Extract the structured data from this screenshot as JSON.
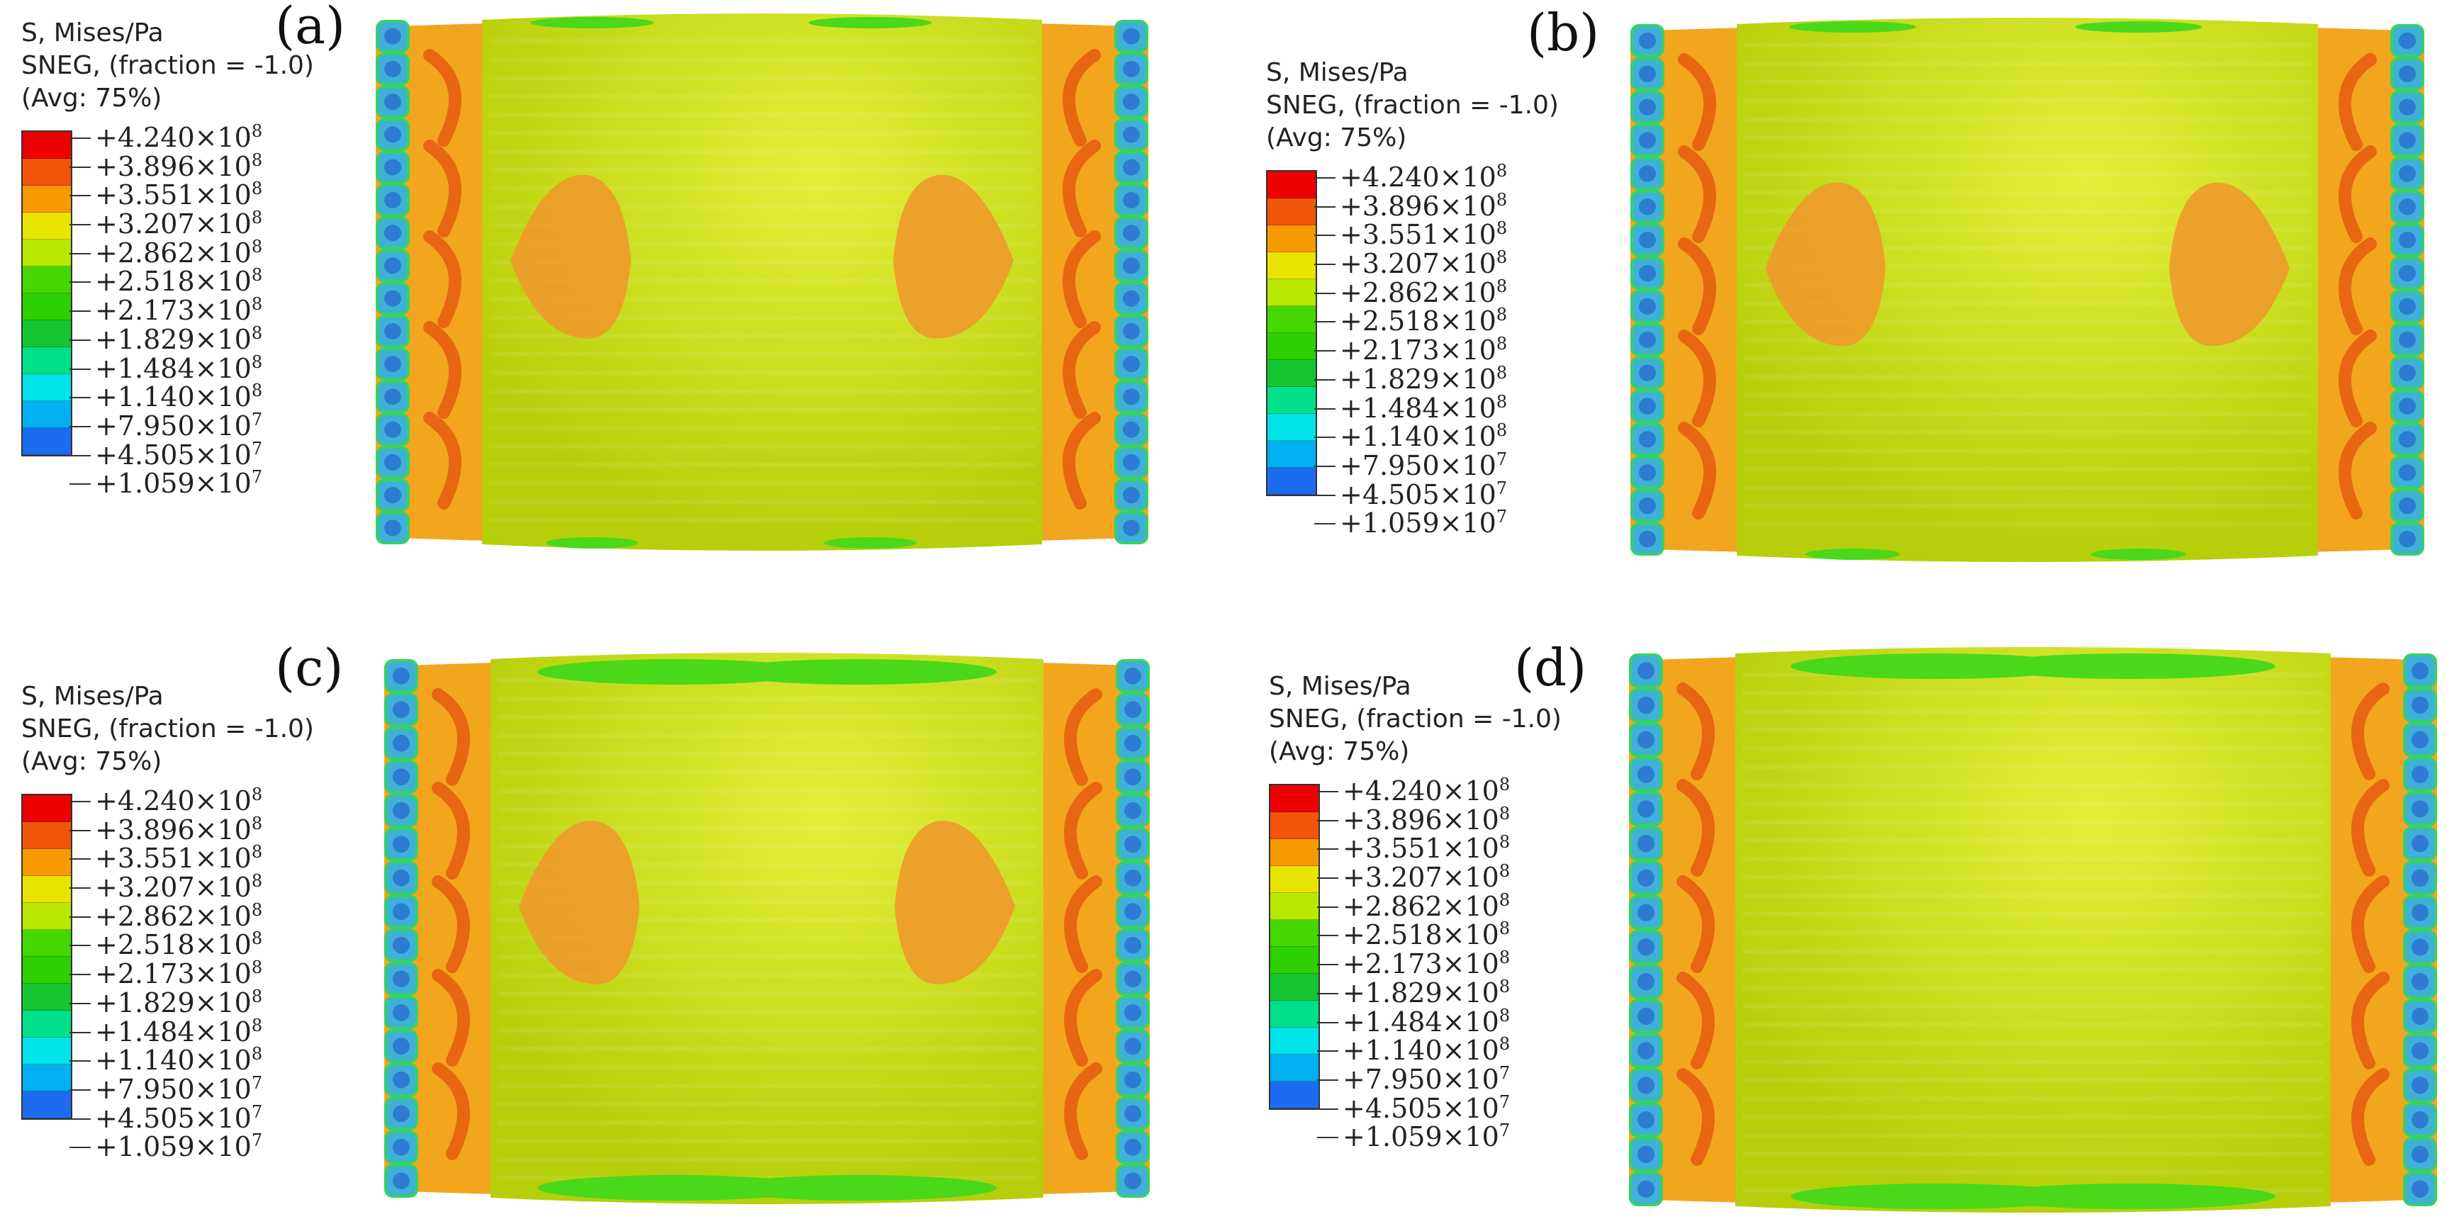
{
  "legend": {
    "title": "S, Mises/Pa",
    "subtitle": "SNEG, (fraction = -1.0)",
    "avg": "(Avg: 75%)",
    "levels": [
      {
        "mantissa": "+4.240",
        "exp": "8"
      },
      {
        "mantissa": "+3.896",
        "exp": "8"
      },
      {
        "mantissa": "+3.551",
        "exp": "8"
      },
      {
        "mantissa": "+3.207",
        "exp": "8"
      },
      {
        "mantissa": "+2.862",
        "exp": "8"
      },
      {
        "mantissa": "+2.518",
        "exp": "8"
      },
      {
        "mantissa": "+2.173",
        "exp": "8"
      },
      {
        "mantissa": "+1.829",
        "exp": "8"
      },
      {
        "mantissa": "+1.484",
        "exp": "8"
      },
      {
        "mantissa": "+1.140",
        "exp": "8"
      },
      {
        "mantissa": "+7.950",
        "exp": "7"
      },
      {
        "mantissa": "+4.505",
        "exp": "7"
      },
      {
        "mantissa": "+1.059",
        "exp": "7"
      }
    ],
    "colors": [
      "#ee0000",
      "#f2560a",
      "#f79a00",
      "#e8e400",
      "#b8e800",
      "#44d800",
      "#2ccf00",
      "#16c532",
      "#00e08a",
      "#00e3e8",
      "#00b0f0",
      "#1d6cf0",
      "#1010e8"
    ]
  },
  "colors": {
    "body": "#c8e010",
    "band": "#f1a61e",
    "hot": "#e86612",
    "edge": "#4ad81a",
    "cell": "#3fb0d8",
    "cellcore": "#2a6fd0"
  },
  "panels": [
    {
      "label": "(a)",
      "hot_patch": true,
      "top_strip": "dotted"
    },
    {
      "label": "(b)",
      "hot_patch": true,
      "top_strip": "dotted"
    },
    {
      "label": "(c)",
      "hot_patch": true,
      "top_strip": "thick"
    },
    {
      "label": "(d)",
      "hot_patch": false,
      "top_strip": "thick"
    }
  ]
}
